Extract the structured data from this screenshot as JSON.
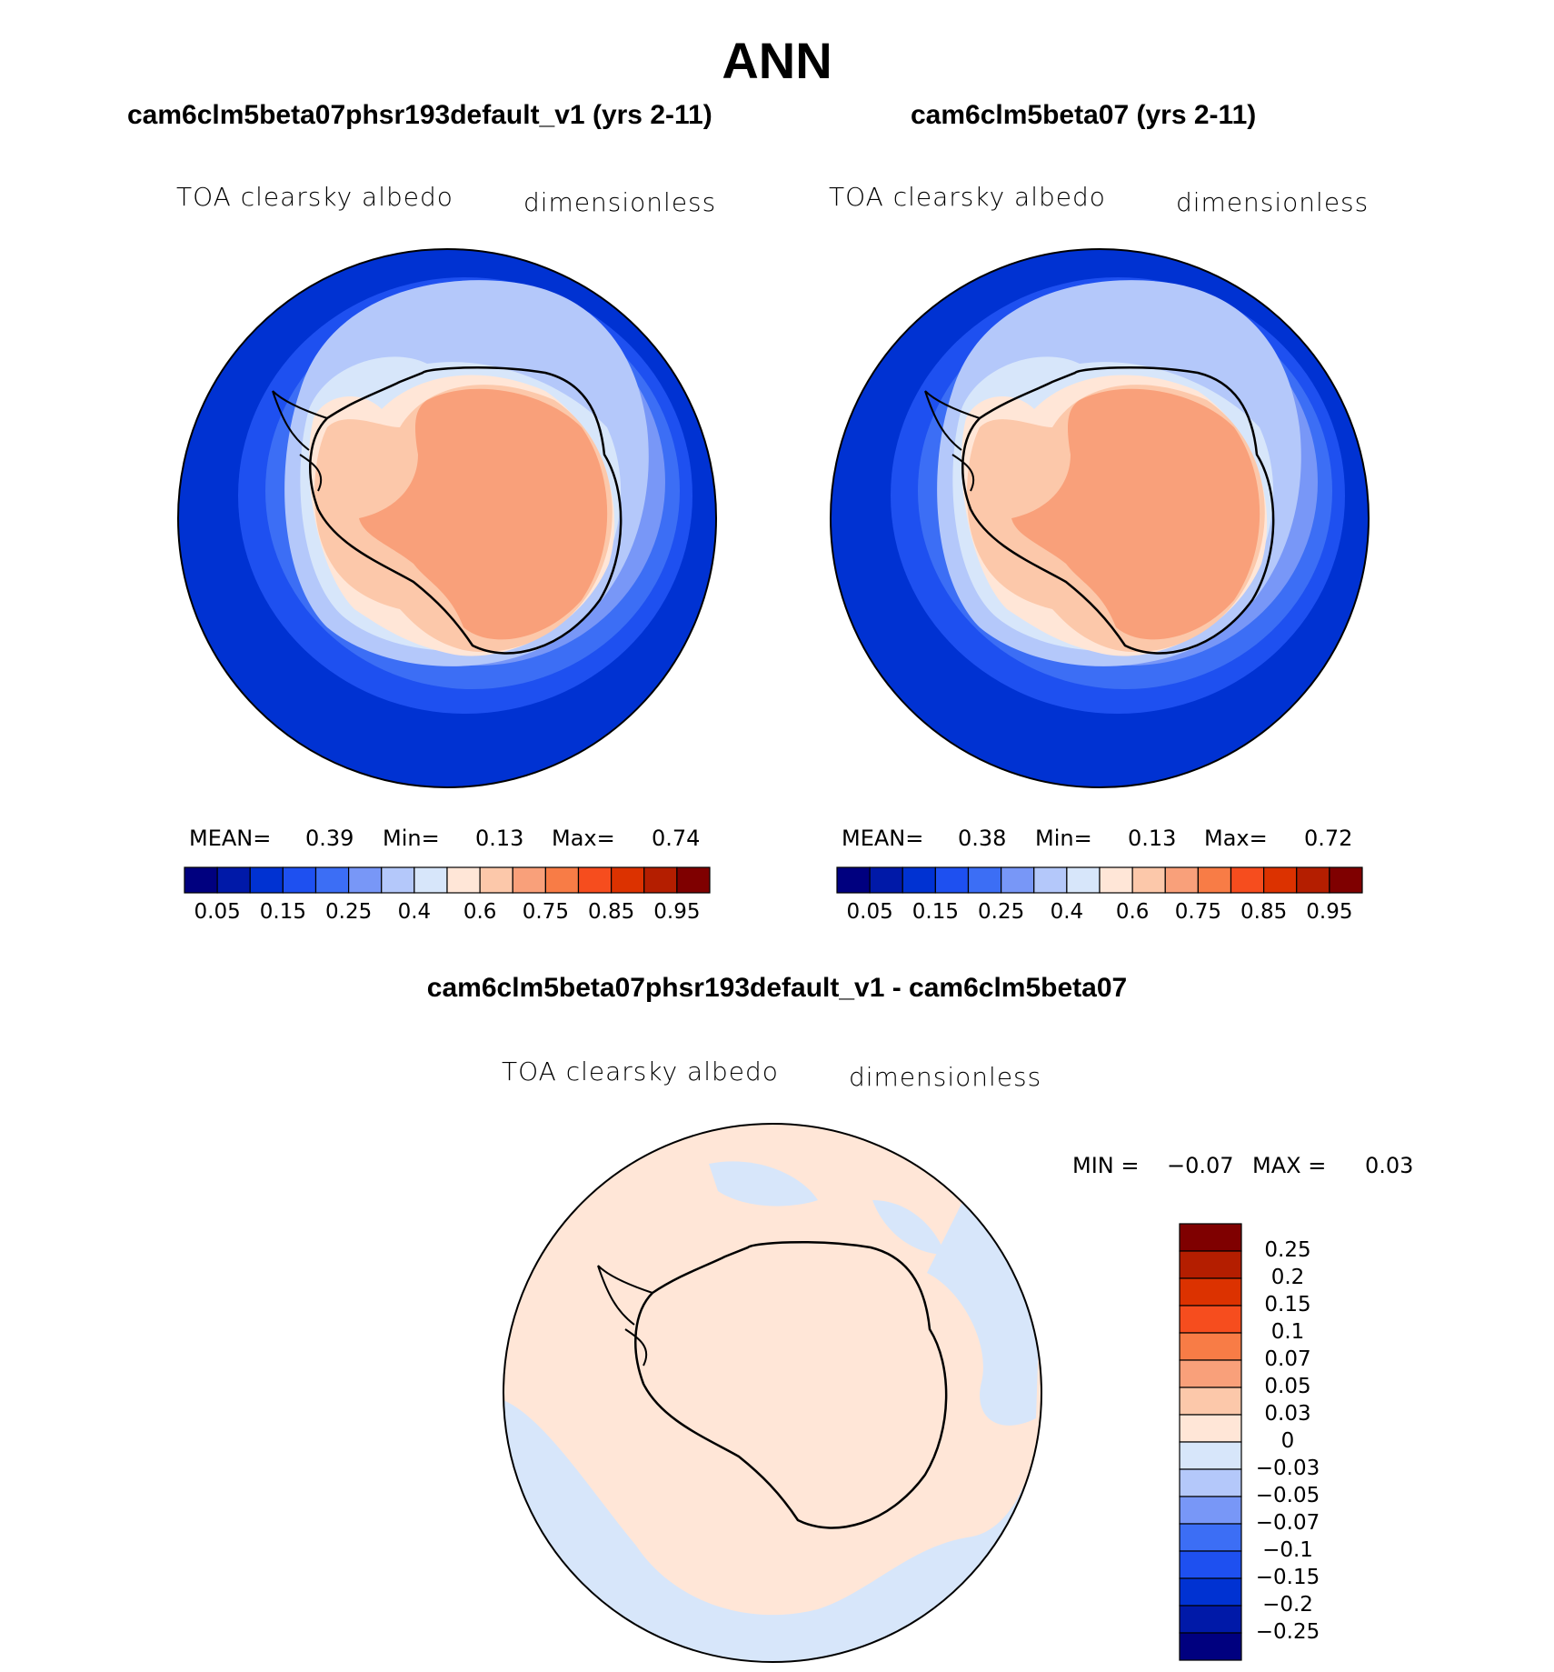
{
  "page_title": "ANN",
  "panels": [
    {
      "title": "cam6clm5beta07phsr193default_v1 (yrs 2-11)",
      "variable": "TOA clearsky albedo",
      "units": "dimensionless",
      "stats": {
        "mean_label": "MEAN=",
        "mean": "0.39",
        "min_label": "Min=",
        "min": "0.13",
        "max_label": "Max=",
        "max": "0.74"
      }
    },
    {
      "title": "cam6clm5beta07 (yrs 2-11)",
      "variable": "TOA clearsky albedo",
      "units": "dimensionless",
      "stats": {
        "mean_label": "MEAN=",
        "mean": "0.38",
        "min_label": "Min=",
        "min": "0.13",
        "max_label": "Max=",
        "max": "0.72"
      }
    },
    {
      "title": "cam6clm5beta07phsr193default_v1 - cam6clm5beta07",
      "variable": "TOA clearsky albedo",
      "units": "dimensionless",
      "stats": {
        "min_label": "MIN =",
        "min": "−0.07",
        "max_label": "MAX =",
        "max": "0.03"
      }
    }
  ],
  "chart_data": [
    {
      "type": "heatmap",
      "projection": "south-polar-stereographic",
      "title": "cam6clm5beta07phsr193default_v1 (yrs 2-11)",
      "variable": "TOA clearsky albedo",
      "units": "dimensionless",
      "mean": 0.39,
      "min": 0.13,
      "max": 0.74,
      "colorbar_tick_labels": [
        "0.05",
        "0.15",
        "0.25",
        "0.4",
        "0.6",
        "0.75",
        "0.85",
        "0.95"
      ],
      "colorbar_orientation": "horizontal"
    },
    {
      "type": "heatmap",
      "projection": "south-polar-stereographic",
      "title": "cam6clm5beta07 (yrs 2-11)",
      "variable": "TOA clearsky albedo",
      "units": "dimensionless",
      "mean": 0.38,
      "min": 0.13,
      "max": 0.72,
      "colorbar_tick_labels": [
        "0.05",
        "0.15",
        "0.25",
        "0.4",
        "0.6",
        "0.75",
        "0.85",
        "0.95"
      ],
      "colorbar_orientation": "horizontal"
    },
    {
      "type": "heatmap",
      "projection": "south-polar-stereographic",
      "title": "cam6clm5beta07phsr193default_v1 - cam6clm5beta07",
      "variable": "TOA clearsky albedo",
      "units": "dimensionless",
      "min": -0.07,
      "max": 0.03,
      "colorbar_tick_labels": [
        "0.25",
        "0.2",
        "0.15",
        "0.1",
        "0.07",
        "0.05",
        "0.03",
        "0",
        "−0.03",
        "−0.05",
        "−0.07",
        "−0.1",
        "−0.15",
        "−0.2",
        "−0.25"
      ],
      "colorbar_orientation": "vertical"
    }
  ],
  "colors": {
    "abs_scale": [
      "#00007f",
      "#0019a8",
      "#0032d2",
      "#1e50f0",
      "#3c6ef5",
      "#7897f7",
      "#b4c8fa",
      "#d7e6fa",
      "#ffe6d7",
      "#fcc8aa",
      "#f9a07a",
      "#f87c46",
      "#f64d1e",
      "#dc3200",
      "#b41e00",
      "#7f0000"
    ],
    "diff_scale": [
      "#7f0000",
      "#b41e00",
      "#dc3200",
      "#f64d1e",
      "#f87c46",
      "#f9a07a",
      "#fcc8aa",
      "#ffe6d7",
      "#d7e6fa",
      "#b4c8fa",
      "#7897f7",
      "#3c6ef5",
      "#1e50f0",
      "#0032d2",
      "#0019a8",
      "#00007f"
    ]
  }
}
